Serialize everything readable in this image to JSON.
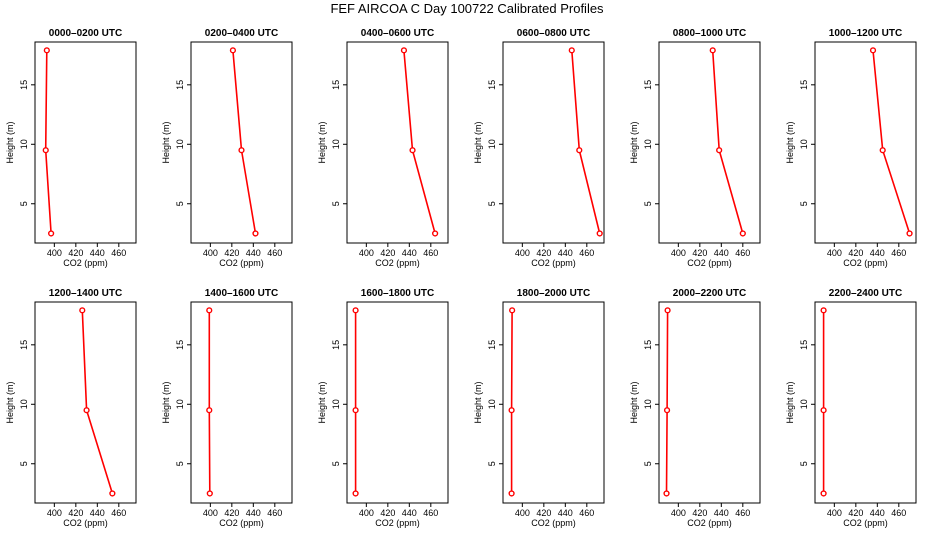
{
  "figure_title": "FEF AIRCOA C  Day 100722  Calibrated Profiles",
  "colors": {
    "line": "#ff0000",
    "marker": "#ff0000",
    "axis": "#000000"
  },
  "chart_data": [
    {
      "type": "line",
      "title": "0000–0200 UTC",
      "xlabel": "CO2 (ppm)",
      "ylabel": "Height (m)",
      "xlim": [
        382,
        476
      ],
      "ylim": [
        1.7,
        18.6
      ],
      "xticks": [
        "400",
        "420",
        "440",
        "460"
      ],
      "yticks": [
        "5",
        "10",
        "15"
      ],
      "x": [
        393,
        392,
        397
      ],
      "y": [
        17.9,
        9.5,
        2.5
      ]
    },
    {
      "type": "line",
      "title": "0200–0400 UTC",
      "xlabel": "CO2 (ppm)",
      "ylabel": "Height (m)",
      "xlim": [
        382,
        476
      ],
      "ylim": [
        1.7,
        18.6
      ],
      "xticks": [
        "400",
        "420",
        "440",
        "460"
      ],
      "yticks": [
        "5",
        "10",
        "15"
      ],
      "x": [
        421,
        429,
        442
      ],
      "y": [
        17.9,
        9.5,
        2.5
      ]
    },
    {
      "type": "line",
      "title": "0400–0600 UTC",
      "xlabel": "CO2 (ppm)",
      "ylabel": "Height (m)",
      "xlim": [
        382,
        476
      ],
      "ylim": [
        1.7,
        18.6
      ],
      "xticks": [
        "400",
        "420",
        "440",
        "460"
      ],
      "yticks": [
        "5",
        "10",
        "15"
      ],
      "x": [
        435,
        443,
        464
      ],
      "y": [
        17.9,
        9.5,
        2.5
      ]
    },
    {
      "type": "line",
      "title": "0600–0800 UTC",
      "xlabel": "CO2 (ppm)",
      "ylabel": "Height (m)",
      "xlim": [
        382,
        476
      ],
      "ylim": [
        1.7,
        18.6
      ],
      "xticks": [
        "400",
        "420",
        "440",
        "460"
      ],
      "yticks": [
        "5",
        "10",
        "15"
      ],
      "x": [
        446,
        453,
        472
      ],
      "y": [
        17.9,
        9.5,
        2.5
      ]
    },
    {
      "type": "line",
      "title": "0800–1000 UTC",
      "xlabel": "CO2 (ppm)",
      "ylabel": "Height (m)",
      "xlim": [
        382,
        476
      ],
      "ylim": [
        1.7,
        18.6
      ],
      "xticks": [
        "400",
        "420",
        "440",
        "460"
      ],
      "yticks": [
        "5",
        "10",
        "15"
      ],
      "x": [
        432,
        438,
        460
      ],
      "y": [
        17.9,
        9.5,
        2.5
      ]
    },
    {
      "type": "line",
      "title": "1000–1200 UTC",
      "xlabel": "CO2 (ppm)",
      "ylabel": "Height (m)",
      "xlim": [
        382,
        476
      ],
      "ylim": [
        1.7,
        18.6
      ],
      "xticks": [
        "400",
        "420",
        "440",
        "460"
      ],
      "yticks": [
        "5",
        "10",
        "15"
      ],
      "x": [
        436,
        445,
        470
      ],
      "y": [
        17.9,
        9.5,
        2.5
      ]
    },
    {
      "type": "line",
      "title": "1200–1400 UTC",
      "xlabel": "CO2 (ppm)",
      "ylabel": "Height (m)",
      "xlim": [
        382,
        476
      ],
      "ylim": [
        1.7,
        18.6
      ],
      "xticks": [
        "400",
        "420",
        "440",
        "460"
      ],
      "yticks": [
        "5",
        "10",
        "15"
      ],
      "x": [
        426,
        430,
        454
      ],
      "y": [
        17.9,
        9.5,
        2.5
      ]
    },
    {
      "type": "line",
      "title": "1400–1600 UTC",
      "xlabel": "CO2 (ppm)",
      "ylabel": "Height (m)",
      "xlim": [
        382,
        476
      ],
      "ylim": [
        1.7,
        18.6
      ],
      "xticks": [
        "400",
        "420",
        "440",
        "460"
      ],
      "yticks": [
        "5",
        "10",
        "15"
      ],
      "x": [
        399,
        399,
        399.5
      ],
      "y": [
        17.9,
        9.5,
        2.5
      ]
    },
    {
      "type": "line",
      "title": "1600–1800 UTC",
      "xlabel": "CO2 (ppm)",
      "ylabel": "Height (m)",
      "xlim": [
        382,
        476
      ],
      "ylim": [
        1.7,
        18.6
      ],
      "xticks": [
        "400",
        "420",
        "440",
        "460"
      ],
      "yticks": [
        "5",
        "10",
        "15"
      ],
      "x": [
        390,
        390,
        390
      ],
      "y": [
        17.9,
        9.5,
        2.5
      ]
    },
    {
      "type": "line",
      "title": "1800–2000 UTC",
      "xlabel": "CO2 (ppm)",
      "ylabel": "Height (m)",
      "xlim": [
        382,
        476
      ],
      "ylim": [
        1.7,
        18.6
      ],
      "xticks": [
        "400",
        "420",
        "440",
        "460"
      ],
      "yticks": [
        "5",
        "10",
        "15"
      ],
      "x": [
        390.5,
        390,
        390
      ],
      "y": [
        17.9,
        9.5,
        2.5
      ]
    },
    {
      "type": "line",
      "title": "2000–2200 UTC",
      "xlabel": "CO2 (ppm)",
      "ylabel": "Height (m)",
      "xlim": [
        382,
        476
      ],
      "ylim": [
        1.7,
        18.6
      ],
      "xticks": [
        "400",
        "420",
        "440",
        "460"
      ],
      "yticks": [
        "5",
        "10",
        "15"
      ],
      "x": [
        390,
        389.5,
        389
      ],
      "y": [
        17.9,
        9.5,
        2.5
      ]
    },
    {
      "type": "line",
      "title": "2200–2400 UTC",
      "xlabel": "CO2 (ppm)",
      "ylabel": "Height (m)",
      "xlim": [
        382,
        476
      ],
      "ylim": [
        1.7,
        18.6
      ],
      "xticks": [
        "400",
        "420",
        "440",
        "460"
      ],
      "yticks": [
        "5",
        "10",
        "15"
      ],
      "x": [
        390,
        390,
        390
      ],
      "y": [
        17.9,
        9.5,
        2.5
      ]
    }
  ]
}
